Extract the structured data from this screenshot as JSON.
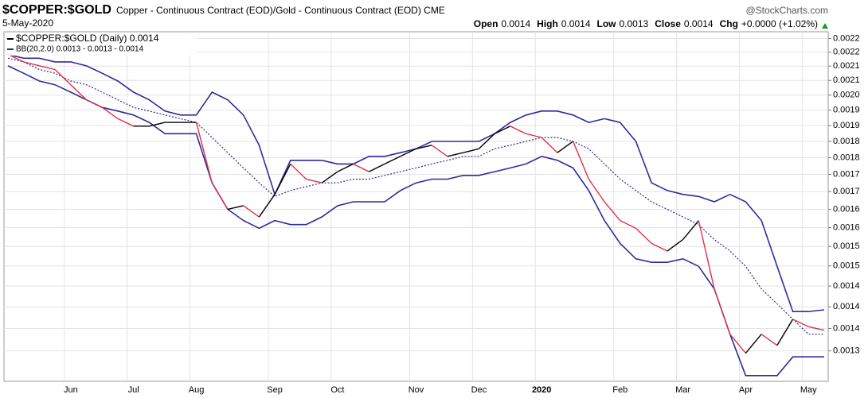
{
  "chart_data": {
    "type": "line",
    "title": "$COPPER:$GOLD",
    "subtitle": "Copper - Continuous Contract (EOD)/Gold - Continuous Contract (EOD) CME",
    "source": "@StockCharts.com",
    "date": "5-May-2020",
    "quote": [
      {
        "label": "Open",
        "value": "0.0014"
      },
      {
        "label": "High",
        "value": "0.0014"
      },
      {
        "label": "Low",
        "value": "0.0013"
      },
      {
        "label": "Close",
        "value": "0.0014"
      },
      {
        "label": "Chg",
        "value": "+0.0000 (+1.02%)"
      }
    ],
    "log_scale": true,
    "grid": true,
    "categories": [
      null,
      null,
      null,
      null,
      "Jun",
      null,
      null,
      null,
      "Jul",
      null,
      null,
      null,
      "Aug",
      null,
      null,
      null,
      null,
      "Sep",
      null,
      null,
      null,
      "Oct",
      null,
      null,
      null,
      null,
      "Nov",
      null,
      null,
      null,
      "Dec",
      null,
      null,
      null,
      "2020",
      null,
      null,
      null,
      null,
      "Feb",
      null,
      null,
      null,
      "Mar",
      null,
      null,
      null,
      "Apr",
      null,
      null,
      null,
      "May",
      null
    ],
    "ylim": [
      0.001235,
      0.002225
    ],
    "yticks": [
      {
        "value": 0.0022,
        "label": "0.0022"
      },
      {
        "value": 0.00215,
        "label": "0.0022"
      },
      {
        "value": 0.0021,
        "label": "0.0021"
      },
      {
        "value": 0.00205,
        "label": "0.0021"
      },
      {
        "value": 0.002,
        "label": "0.0020"
      },
      {
        "value": 0.00195,
        "label": "0.0019"
      },
      {
        "value": 0.0019,
        "label": "0.0019"
      },
      {
        "value": 0.00185,
        "label": "0.0018"
      },
      {
        "value": 0.0018,
        "label": "0.0018"
      },
      {
        "value": 0.00175,
        "label": "0.0017"
      },
      {
        "value": 0.0017,
        "label": "0.0017"
      },
      {
        "value": 0.00165,
        "label": "0.0016"
      },
      {
        "value": 0.0016,
        "label": "0.0016"
      },
      {
        "value": 0.00155,
        "label": "0.0015"
      },
      {
        "value": 0.0015,
        "label": "0.0015"
      },
      {
        "value": 0.00145,
        "label": "0.0014"
      },
      {
        "value": 0.0014,
        "label": "0.0014"
      },
      {
        "value": 0.00135,
        "label": "0.0014"
      },
      {
        "value": 0.0013,
        "label": "0.0013"
      }
    ],
    "series": [
      {
        "name": "$COPPER:$GOLD (Daily) 0.0014",
        "color": "#000000",
        "down_color": "#e0304a",
        "values": [
          0.002142,
          0.002115,
          0.002101,
          0.002088,
          0.002035,
          0.001984,
          0.001959,
          0.001922,
          0.001898,
          0.001898,
          0.00191,
          0.00191,
          0.00191,
          0.001725,
          0.00165,
          0.00166,
          0.001629,
          0.001692,
          0.001781,
          0.001736,
          0.001725,
          0.001758,
          0.001781,
          0.001758,
          0.001781,
          0.001804,
          0.001827,
          0.001838,
          0.001804,
          0.001815,
          0.001827,
          0.001874,
          0.001898,
          0.001874,
          0.001862,
          0.001815,
          0.00185,
          0.001736,
          0.001671,
          0.001619,
          0.001598,
          0.001558,
          0.001538,
          0.001568,
          0.001619,
          0.001443,
          0.001337,
          0.001295,
          0.001337,
          0.001312,
          0.001371,
          0.001354,
          0.001346
        ]
      }
    ],
    "bands": {
      "name": "BB(20,2.0) 0.0013 - 0.0013 - 0.0014",
      "color": "#2c2c9c",
      "upper": [
        0.002142,
        0.002128,
        0.002128,
        0.002115,
        0.002115,
        0.002101,
        0.002075,
        0.002048,
        0.00201,
        0.001984,
        0.001947,
        0.001934,
        0.001934,
        0.00201,
        0.001984,
        0.001934,
        0.001838,
        0.001692,
        0.001792,
        0.001792,
        0.001792,
        0.001781,
        0.001781,
        0.001804,
        0.001804,
        0.001815,
        0.001827,
        0.00185,
        0.00185,
        0.00185,
        0.00185,
        0.001874,
        0.00191,
        0.001934,
        0.001947,
        0.001947,
        0.001934,
        0.00191,
        0.001922,
        0.00191,
        0.00185,
        0.001725,
        0.001703,
        0.001692,
        0.001686,
        0.001671,
        0.001692,
        0.001671,
        0.001619,
        0.001499,
        0.001389,
        0.001389,
        0.001393
      ],
      "middle": [
        0.002128,
        0.002115,
        0.002088,
        0.002075,
        0.002048,
        0.002035,
        0.00201,
        0.001984,
        0.001959,
        0.001947,
        0.001934,
        0.001922,
        0.00191,
        0.001862,
        0.001815,
        0.001769,
        0.001725,
        0.001686,
        0.001703,
        0.001714,
        0.001725,
        0.001725,
        0.001736,
        0.001736,
        0.001747,
        0.001758,
        0.001769,
        0.001781,
        0.001792,
        0.001804,
        0.001804,
        0.001827,
        0.001838,
        0.00185,
        0.001862,
        0.001862,
        0.00185,
        0.001827,
        0.001781,
        0.001736,
        0.001703,
        0.001671,
        0.00165,
        0.001629,
        0.001608,
        0.001568,
        0.001538,
        0.001499,
        0.001443,
        0.001407,
        0.001371,
        0.001337,
        0.001337
      ],
      "lower": [
        0.002101,
        0.002075,
        0.002048,
        0.002035,
        0.00201,
        0.001984,
        0.001959,
        0.001947,
        0.001934,
        0.00191,
        0.001874,
        0.001874,
        0.001874,
        0.001725,
        0.00165,
        0.001619,
        0.001598,
        0.001619,
        0.001608,
        0.001608,
        0.001629,
        0.00166,
        0.001671,
        0.001671,
        0.001671,
        0.001703,
        0.001725,
        0.001736,
        0.001736,
        0.001747,
        0.001747,
        0.001758,
        0.001769,
        0.001781,
        0.001804,
        0.001792,
        0.001769,
        0.001703,
        0.001619,
        0.001558,
        0.001518,
        0.001509,
        0.001509,
        0.001518,
        0.001499,
        0.001443,
        0.001337,
        0.001247,
        0.001247,
        0.001247,
        0.001287,
        0.001287,
        0.001287
      ]
    }
  }
}
